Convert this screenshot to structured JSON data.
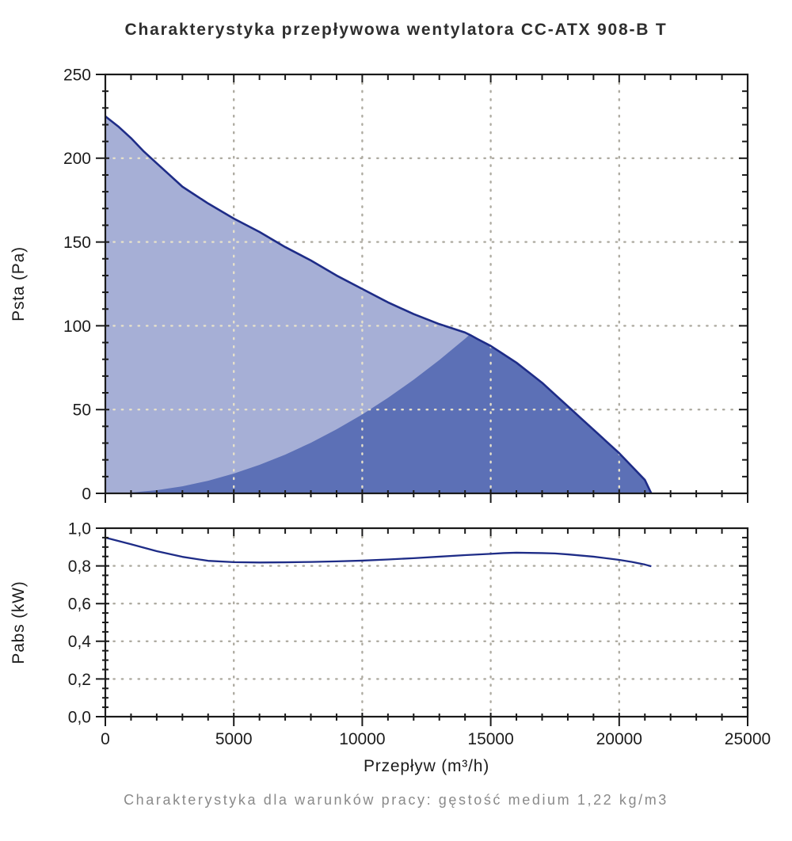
{
  "title": "Charakterystyka przepływowa wentylatora CC-ATX 908-B T",
  "footer": "Charakterystyka dla warunków pracy: gęstość medium 1,22 kg/m3",
  "colors": {
    "curve_line": "#1e2c87",
    "fan_area_fill": "#a6afd6",
    "working_area_fill": "#5c70b6",
    "grid_on_white": "#aeaba1",
    "grid_on_fill": "#e7e1ca",
    "frame": "#1a1a1a",
    "title_text": "#2e2e2e",
    "footer_text": "#8a8a8a"
  },
  "chart_data": [
    {
      "type": "area",
      "id": "psta",
      "ylabel": "Psta (Pa)",
      "xlabel": "Przepływ (m³/h)",
      "xlim": [
        0,
        25000
      ],
      "ylim": [
        0,
        250
      ],
      "grid": "dotted",
      "legend": "none",
      "xticks": [
        {
          "v": 0,
          "label": "0"
        },
        {
          "v": 5000,
          "label": "5000"
        },
        {
          "v": 10000,
          "label": "10000"
        },
        {
          "v": 15000,
          "label": "15000"
        },
        {
          "v": 20000,
          "label": "20000"
        },
        {
          "v": 25000,
          "label": "25000"
        }
      ],
      "x_minor_step": 1000,
      "yticks": [
        {
          "v": 0,
          "label": "0"
        },
        {
          "v": 50,
          "label": "50"
        },
        {
          "v": 100,
          "label": "100"
        },
        {
          "v": 150,
          "label": "150"
        },
        {
          "v": 200,
          "label": "200"
        },
        {
          "v": 250,
          "label": "250"
        }
      ],
      "y_minor_step": 10,
      "grid_x_values": [
        5000,
        10000,
        15000,
        20000
      ],
      "grid_y_values": [
        50,
        100,
        150,
        200
      ],
      "intersection_point": [
        14200,
        95
      ],
      "series": [
        {
          "name": "fan-curve-psta",
          "points": [
            [
              0,
              225
            ],
            [
              500,
              219
            ],
            [
              1000,
              212
            ],
            [
              1500,
              204
            ],
            [
              2000,
              197
            ],
            [
              2500,
              190
            ],
            [
              3000,
              183
            ],
            [
              3500,
              178
            ],
            [
              4000,
              173
            ],
            [
              5000,
              164
            ],
            [
              6000,
              156
            ],
            [
              7000,
              147
            ],
            [
              8000,
              139
            ],
            [
              9000,
              130
            ],
            [
              10000,
              122
            ],
            [
              11000,
              114
            ],
            [
              12000,
              107
            ],
            [
              13000,
              101
            ],
            [
              14000,
              96
            ],
            [
              14200,
              94.5
            ],
            [
              14500,
              92
            ],
            [
              15000,
              88
            ],
            [
              15500,
              83
            ],
            [
              16000,
              78
            ],
            [
              16500,
              72
            ],
            [
              17000,
              66
            ],
            [
              17500,
              59
            ],
            [
              18000,
              52
            ],
            [
              18500,
              45
            ],
            [
              19000,
              38
            ],
            [
              19500,
              31
            ],
            [
              20000,
              24
            ],
            [
              20500,
              16
            ],
            [
              21000,
              8
            ],
            [
              21250,
              0
            ]
          ]
        },
        {
          "name": "system-resistance-boundary",
          "points": [
            [
              0,
              0
            ],
            [
              1000,
              0.5
            ],
            [
              2000,
              1.9
            ],
            [
              3000,
              4.2
            ],
            [
              4000,
              7.5
            ],
            [
              5000,
              11.8
            ],
            [
              6000,
              17
            ],
            [
              7000,
              23.1
            ],
            [
              8000,
              30.2
            ],
            [
              9000,
              38.2
            ],
            [
              10000,
              47.1
            ],
            [
              11000,
              57
            ],
            [
              12000,
              67.8
            ],
            [
              13000,
              79.6
            ],
            [
              14000,
              92.3
            ],
            [
              14200,
              95
            ]
          ]
        }
      ]
    },
    {
      "type": "line",
      "id": "pabs",
      "ylabel": "Pabs (kW)",
      "xlabel": "Przepływ (m³/h)",
      "xlim": [
        0,
        25000
      ],
      "ylim": [
        0,
        1.0
      ],
      "grid": "dotted",
      "legend": "none",
      "xticks": [
        {
          "v": 0,
          "label": "0"
        },
        {
          "v": 5000,
          "label": "5000"
        },
        {
          "v": 10000,
          "label": "10000"
        },
        {
          "v": 15000,
          "label": "15000"
        },
        {
          "v": 20000,
          "label": "20000"
        },
        {
          "v": 25000,
          "label": "25000"
        }
      ],
      "x_minor_step": 1000,
      "yticks": [
        {
          "v": 0,
          "label": "0,0"
        },
        {
          "v": 0.2,
          "label": "0,2"
        },
        {
          "v": 0.4,
          "label": "0,4"
        },
        {
          "v": 0.6,
          "label": "0,6"
        },
        {
          "v": 0.8,
          "label": "0,8"
        },
        {
          "v": 1.0,
          "label": "1,0"
        }
      ],
      "y_minor_step": 0.05,
      "grid_x_values": [
        5000,
        10000,
        15000,
        20000
      ],
      "grid_y_values": [
        0.2,
        0.4,
        0.6,
        0.8
      ],
      "series": [
        {
          "name": "power-curve-pabs",
          "points": [
            [
              0,
              0.95
            ],
            [
              1000,
              0.915
            ],
            [
              2000,
              0.878
            ],
            [
              3000,
              0.848
            ],
            [
              4000,
              0.827
            ],
            [
              5000,
              0.82
            ],
            [
              6000,
              0.818
            ],
            [
              7000,
              0.819
            ],
            [
              8000,
              0.821
            ],
            [
              9000,
              0.824
            ],
            [
              10000,
              0.828
            ],
            [
              11000,
              0.834
            ],
            [
              12000,
              0.841
            ],
            [
              13000,
              0.849
            ],
            [
              14000,
              0.857
            ],
            [
              15000,
              0.864
            ],
            [
              15500,
              0.868
            ],
            [
              16000,
              0.87
            ],
            [
              17000,
              0.868
            ],
            [
              17500,
              0.866
            ],
            [
              18000,
              0.861
            ],
            [
              19000,
              0.849
            ],
            [
              20000,
              0.832
            ],
            [
              20500,
              0.821
            ],
            [
              21000,
              0.807
            ],
            [
              21250,
              0.798
            ]
          ]
        }
      ]
    }
  ]
}
